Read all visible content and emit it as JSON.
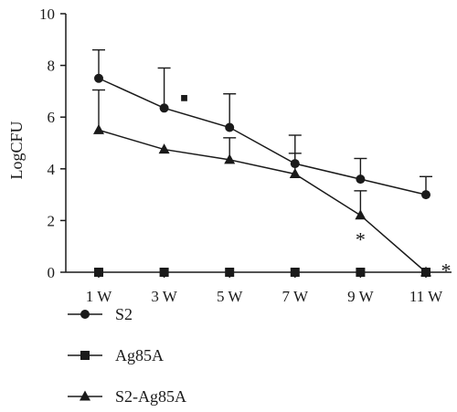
{
  "chart_data": {
    "type": "line",
    "title": "",
    "xlabel": "",
    "ylabel": "LogCFU",
    "ylim": [
      0,
      10
    ],
    "yticks": [
      0,
      2,
      4,
      6,
      8,
      10
    ],
    "categories": [
      "1 W",
      "3 W",
      "5 W",
      "7 W",
      "9 W",
      "11 W"
    ],
    "grid": false,
    "legend_position": "bottom-left",
    "series": [
      {
        "name": "S2",
        "marker": "circle",
        "values": [
          7.5,
          6.35,
          5.6,
          4.2,
          3.6,
          3.0
        ],
        "error_upper": [
          8.6,
          7.9,
          6.9,
          5.3,
          4.4,
          3.7
        ]
      },
      {
        "name": "Ag85A",
        "marker": "square",
        "values": [
          0,
          0,
          0,
          0,
          0,
          0
        ],
        "error_upper": [
          null,
          null,
          null,
          null,
          null,
          null
        ]
      },
      {
        "name": "S2-Ag85A",
        "marker": "triangle",
        "values": [
          5.5,
          4.75,
          4.35,
          3.8,
          2.2,
          0
        ],
        "error_upper": [
          7.05,
          null,
          5.2,
          4.6,
          3.15,
          null
        ]
      }
    ],
    "annotations": [
      {
        "text": "*",
        "category_index": 4,
        "y": 1.5
      },
      {
        "text": "*",
        "category_index": 5,
        "offset": "right",
        "y": 0.3
      },
      {
        "text": "■",
        "category_index": 1,
        "offset": "right",
        "y": 6.8
      }
    ]
  }
}
